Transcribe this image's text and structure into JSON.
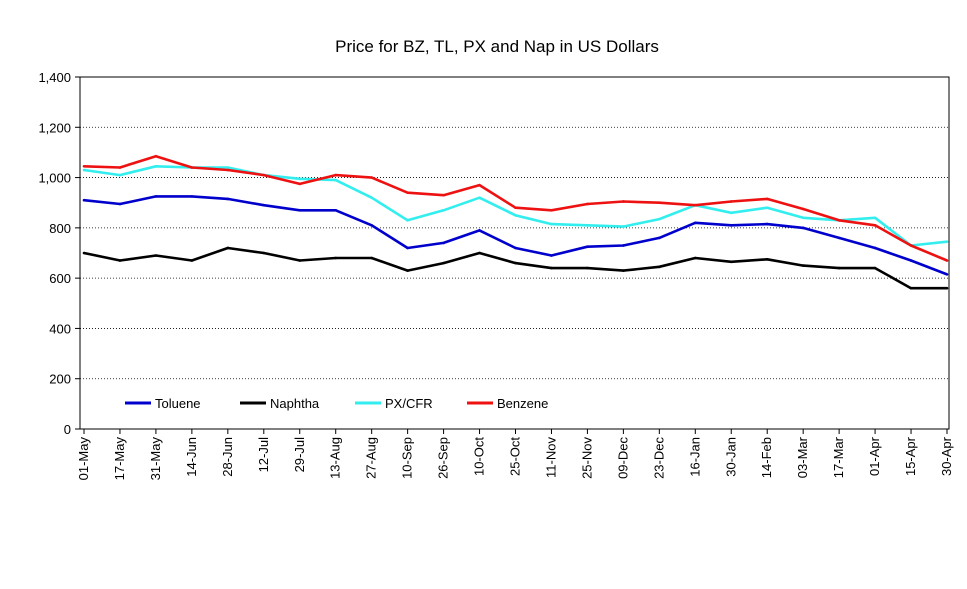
{
  "chart_data": {
    "type": "line",
    "title": "Price for BZ, TL, PX and Nap in US Dollars",
    "xlabel": "",
    "ylabel": "",
    "ylim": [
      0,
      1400
    ],
    "y_ticks": [
      "0",
      "200",
      "400",
      "600",
      "800",
      "1,000",
      "1,200",
      "1,400"
    ],
    "grid": "horizontal dotted",
    "legend_position": "bottom-left",
    "categories": [
      "01-May",
      "17-May",
      "31-May",
      "14-Jun",
      "28-Jun",
      "12-Jul",
      "29-Jul",
      "13-Aug",
      "27-Aug",
      "10-Sep",
      "26-Sep",
      "10-Oct",
      "25-Oct",
      "11-Nov",
      "25-Nov",
      "09-Dec",
      "23-Dec",
      "16-Jan",
      "30-Jan",
      "14-Feb",
      "03-Mar",
      "17-Mar",
      "01-Apr",
      "15-Apr",
      "30-Apr"
    ],
    "series": [
      {
        "name": "Toluene",
        "color": "#0000cc",
        "values": [
          910,
          895,
          925,
          925,
          915,
          890,
          870,
          870,
          810,
          720,
          740,
          790,
          720,
          690,
          725,
          730,
          760,
          820,
          810,
          815,
          800,
          760,
          720,
          670,
          615
        ]
      },
      {
        "name": "Naphtha",
        "color": "#000000",
        "values": [
          700,
          670,
          690,
          670,
          720,
          700,
          670,
          680,
          680,
          630,
          660,
          700,
          660,
          640,
          640,
          630,
          645,
          680,
          665,
          675,
          650,
          640,
          640,
          560,
          560
        ]
      },
      {
        "name": "PX/CFR",
        "color": "#33eeee",
        "values": [
          1030,
          1010,
          1045,
          1040,
          1040,
          1010,
          995,
          990,
          920,
          830,
          870,
          920,
          850,
          815,
          810,
          805,
          835,
          890,
          860,
          880,
          840,
          830,
          840,
          730,
          745
        ]
      },
      {
        "name": "Benzene",
        "color": "#ee1111",
        "values": [
          1045,
          1040,
          1085,
          1040,
          1030,
          1010,
          975,
          1010,
          1000,
          940,
          930,
          970,
          880,
          870,
          895,
          905,
          900,
          890,
          905,
          915,
          875,
          830,
          810,
          730,
          670
        ]
      }
    ]
  }
}
